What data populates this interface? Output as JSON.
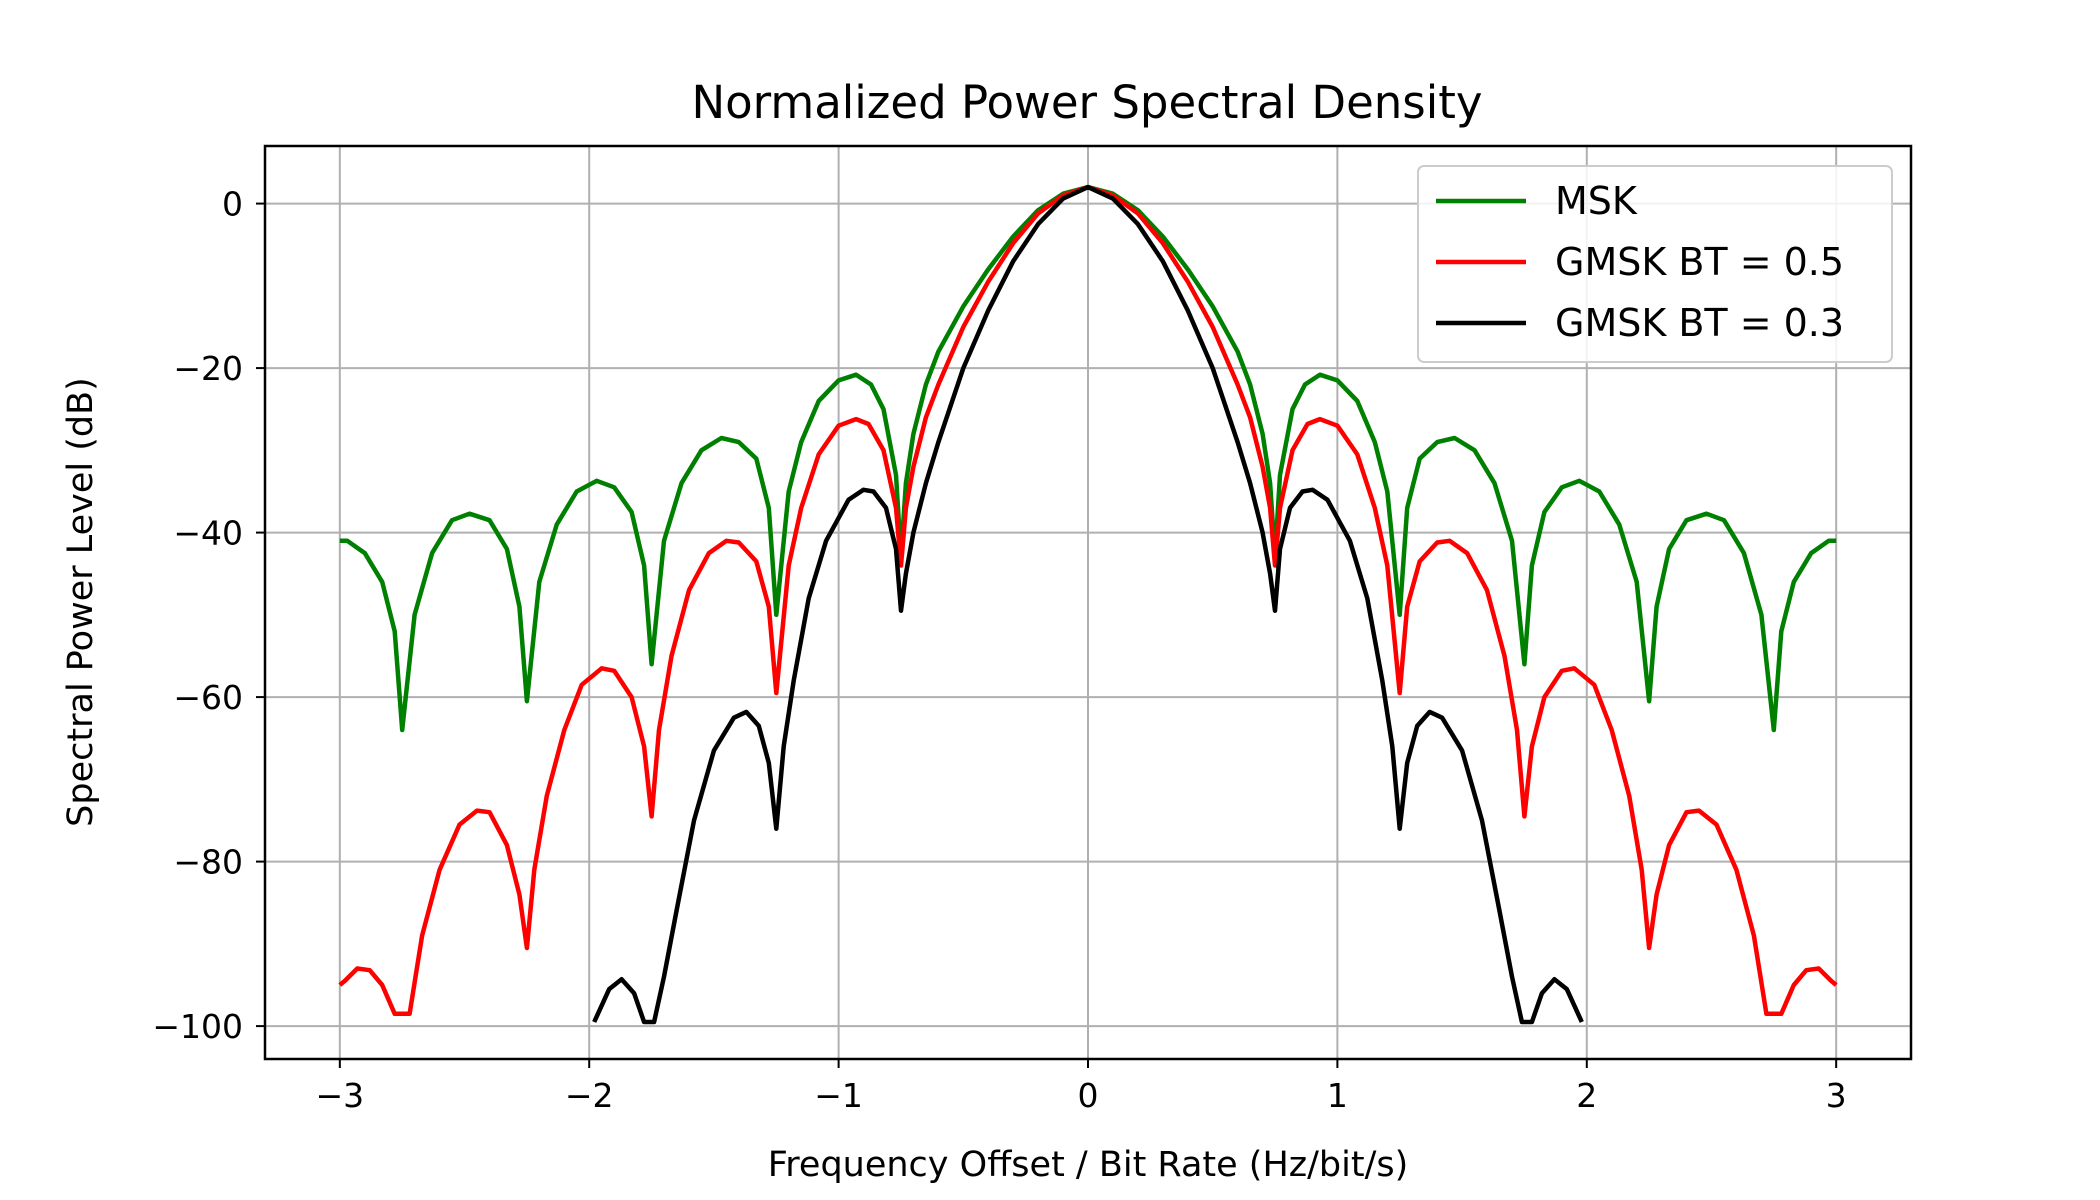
{
  "chart_data": {
    "type": "line",
    "title": "Normalized Power Spectral Density",
    "xlabel": "Frequency Offset / Bit Rate (Hz/bit/s)",
    "ylabel": "Spectral Power Level (dB)",
    "xlim": [
      -3.3,
      3.3
    ],
    "ylim": [
      -104,
      7
    ],
    "xticks": [
      -3,
      -2,
      -1,
      0,
      1,
      2,
      3
    ],
    "xtick_labels": [
      "−3",
      "−2",
      "−1",
      "0",
      "1",
      "2",
      "3"
    ],
    "yticks": [
      0,
      -20,
      -40,
      -60,
      -80,
      -100
    ],
    "ytick_labels": [
      "0",
      "−20",
      "−40",
      "−60",
      "−80",
      "−100"
    ],
    "grid": true,
    "legend_position": "top-right",
    "series": [
      {
        "name": "MSK",
        "color": "#008000",
        "points": [
          [
            0.0,
            2.0
          ],
          [
            0.1,
            1.2
          ],
          [
            0.2,
            -0.8
          ],
          [
            0.3,
            -4.0
          ],
          [
            0.4,
            -8.0
          ],
          [
            0.5,
            -12.5
          ],
          [
            0.6,
            -18.0
          ],
          [
            0.65,
            -22.0
          ],
          [
            0.7,
            -28.0
          ],
          [
            0.73,
            -34.0
          ],
          [
            0.75,
            -43.0
          ],
          [
            0.77,
            -33.0
          ],
          [
            0.82,
            -25.0
          ],
          [
            0.87,
            -22.0
          ],
          [
            0.93,
            -20.8
          ],
          [
            1.0,
            -21.5
          ],
          [
            1.08,
            -24.0
          ],
          [
            1.15,
            -29.0
          ],
          [
            1.2,
            -35.0
          ],
          [
            1.25,
            -50.0
          ],
          [
            1.28,
            -37.0
          ],
          [
            1.33,
            -31.0
          ],
          [
            1.4,
            -29.0
          ],
          [
            1.47,
            -28.5
          ],
          [
            1.55,
            -30.0
          ],
          [
            1.63,
            -34.0
          ],
          [
            1.7,
            -41.0
          ],
          [
            1.75,
            -56.0
          ],
          [
            1.78,
            -44.0
          ],
          [
            1.83,
            -37.5
          ],
          [
            1.9,
            -34.5
          ],
          [
            1.97,
            -33.7
          ],
          [
            2.05,
            -35.0
          ],
          [
            2.13,
            -39.0
          ],
          [
            2.2,
            -46.0
          ],
          [
            2.25,
            -60.5
          ],
          [
            2.28,
            -49.0
          ],
          [
            2.33,
            -42.0
          ],
          [
            2.4,
            -38.5
          ],
          [
            2.48,
            -37.7
          ],
          [
            2.55,
            -38.5
          ],
          [
            2.63,
            -42.5
          ],
          [
            2.7,
            -50.0
          ],
          [
            2.75,
            -64.0
          ],
          [
            2.78,
            -52.0
          ],
          [
            2.83,
            -46.0
          ],
          [
            2.9,
            -42.5
          ],
          [
            2.97,
            -41.0
          ],
          [
            3.0,
            -41.0
          ]
        ]
      },
      {
        "name": "GMSK BT = 0.5",
        "color": "#ff0000",
        "points": [
          [
            0.0,
            2.0
          ],
          [
            0.1,
            1.0
          ],
          [
            0.2,
            -1.2
          ],
          [
            0.3,
            -4.8
          ],
          [
            0.4,
            -9.5
          ],
          [
            0.5,
            -15.0
          ],
          [
            0.6,
            -22.0
          ],
          [
            0.65,
            -26.0
          ],
          [
            0.7,
            -32.0
          ],
          [
            0.73,
            -37.0
          ],
          [
            0.75,
            -44.0
          ],
          [
            0.77,
            -37.0
          ],
          [
            0.82,
            -30.0
          ],
          [
            0.88,
            -26.8
          ],
          [
            0.93,
            -26.2
          ],
          [
            1.0,
            -27.0
          ],
          [
            1.08,
            -30.5
          ],
          [
            1.15,
            -37.0
          ],
          [
            1.2,
            -44.0
          ],
          [
            1.25,
            -59.5
          ],
          [
            1.28,
            -49.0
          ],
          [
            1.33,
            -43.5
          ],
          [
            1.4,
            -41.2
          ],
          [
            1.45,
            -41.0
          ],
          [
            1.52,
            -42.5
          ],
          [
            1.6,
            -47.0
          ],
          [
            1.67,
            -55.0
          ],
          [
            1.72,
            -64.0
          ],
          [
            1.75,
            -74.5
          ],
          [
            1.78,
            -66.0
          ],
          [
            1.83,
            -60.0
          ],
          [
            1.9,
            -56.8
          ],
          [
            1.95,
            -56.5
          ],
          [
            2.03,
            -58.5
          ],
          [
            2.1,
            -64.0
          ],
          [
            2.17,
            -72.0
          ],
          [
            2.22,
            -81.0
          ],
          [
            2.25,
            -90.5
          ],
          [
            2.28,
            -84.0
          ],
          [
            2.33,
            -78.0
          ],
          [
            2.4,
            -74.0
          ],
          [
            2.45,
            -73.8
          ],
          [
            2.52,
            -75.5
          ],
          [
            2.6,
            -81.0
          ],
          [
            2.67,
            -89.0
          ],
          [
            2.72,
            -98.5
          ],
          [
            2.78,
            -98.5
          ],
          [
            2.83,
            -95.0
          ],
          [
            2.88,
            -93.2
          ],
          [
            2.93,
            -93.0
          ],
          [
            2.98,
            -94.5
          ],
          [
            3.0,
            -95.0
          ]
        ]
      },
      {
        "name": "GMSK BT = 0.3",
        "color": "#000000",
        "points": [
          [
            0.0,
            2.0
          ],
          [
            0.1,
            0.6
          ],
          [
            0.2,
            -2.5
          ],
          [
            0.3,
            -7.0
          ],
          [
            0.4,
            -13.0
          ],
          [
            0.5,
            -20.0
          ],
          [
            0.6,
            -29.0
          ],
          [
            0.65,
            -34.0
          ],
          [
            0.7,
            -40.0
          ],
          [
            0.73,
            -45.0
          ],
          [
            0.75,
            -49.5
          ],
          [
            0.77,
            -42.0
          ],
          [
            0.81,
            -37.0
          ],
          [
            0.86,
            -35.0
          ],
          [
            0.9,
            -34.8
          ],
          [
            0.96,
            -36.0
          ],
          [
            1.05,
            -41.0
          ],
          [
            1.12,
            -48.0
          ],
          [
            1.18,
            -58.0
          ],
          [
            1.22,
            -66.0
          ],
          [
            1.25,
            -76.0
          ],
          [
            1.28,
            -68.0
          ],
          [
            1.32,
            -63.5
          ],
          [
            1.37,
            -61.8
          ],
          [
            1.42,
            -62.5
          ],
          [
            1.5,
            -66.5
          ],
          [
            1.58,
            -75.0
          ],
          [
            1.65,
            -86.0
          ],
          [
            1.7,
            -94.0
          ],
          [
            1.74,
            -99.5
          ],
          [
            1.78,
            -99.5
          ],
          [
            1.82,
            -96.0
          ],
          [
            1.87,
            -94.3
          ],
          [
            1.92,
            -95.5
          ],
          [
            1.98,
            -99.5
          ]
        ]
      }
    ],
    "mirror_about_zero": true
  }
}
